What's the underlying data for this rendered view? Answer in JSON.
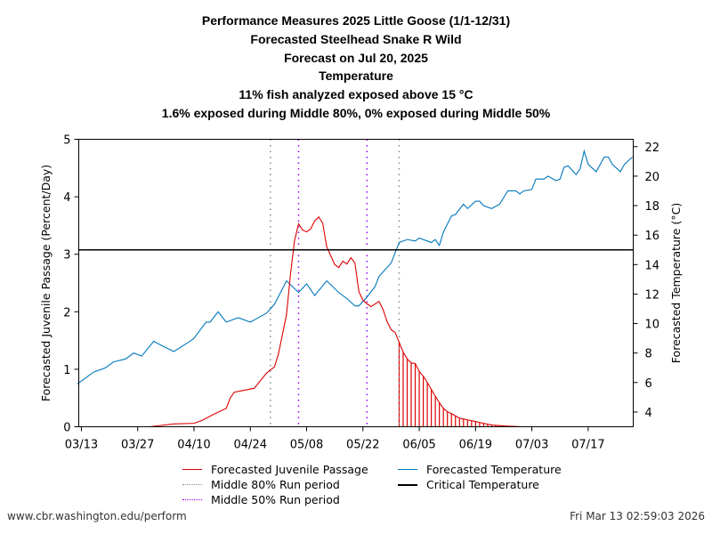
{
  "titles": [
    "Performance Measures 2025 Little Goose (1/1-12/31)",
    "Forecasted Steelhead Snake R Wild",
    "Forecast on Jul 20, 2025",
    "Temperature",
    "11% fish analyzed exposed above 15 °C",
    "1.6% exposed during Middle 80%, 0% exposed during Middle 50%"
  ],
  "footer": {
    "left": "www.cbr.washington.edu/perform",
    "right": "Fri Mar 13 02:59:03 2026"
  },
  "legend": {
    "passage": "Forecasted Juvenile Passage",
    "mid80": "Middle 80% Run period",
    "mid50": "Middle 50% Run period",
    "temperature": "Forecasted Temperature",
    "critical": "Critical Temperature"
  },
  "colors": {
    "passage": "#dd0000",
    "temperature": "#0077bb",
    "mid80": "#888888",
    "mid50": "#9900ee",
    "critical": "#000000"
  },
  "chart_data": {
    "type": "line",
    "year": 2025,
    "xlabel": "",
    "ylabel": "Forecasted Juvenile Passage (Percent/Day)",
    "y2label": "Forecasted Temperature (°C)",
    "xlim": [
      "03/12",
      "07/28"
    ],
    "ylim": [
      0,
      5
    ],
    "y2lim": [
      3,
      22.5
    ],
    "xticks": [
      "03/13",
      "03/27",
      "04/10",
      "04/24",
      "05/08",
      "05/22",
      "06/05",
      "06/19",
      "07/03",
      "07/17"
    ],
    "yticks": [
      0,
      1,
      2,
      3,
      4,
      5
    ],
    "y2ticks": [
      4,
      6,
      8,
      10,
      12,
      14,
      16,
      18,
      20,
      22
    ],
    "critical_temperature": 15,
    "middle_80": [
      "04/29",
      "05/31"
    ],
    "middle_50": [
      "05/06",
      "05/23"
    ],
    "exposed_period": [
      "05/31",
      "06/27"
    ],
    "series": [
      {
        "name": "Forecasted Juvenile Passage",
        "axis": "left",
        "x": [
          "03/30",
          "04/05",
          "04/10",
          "04/12",
          "04/15",
          "04/18",
          "04/19",
          "04/20",
          "04/25",
          "04/28",
          "04/29",
          "04/30",
          "05/01",
          "05/03",
          "05/04",
          "05/05",
          "05/06",
          "05/07",
          "05/08",
          "05/09",
          "05/10",
          "05/11",
          "05/12",
          "05/13",
          "05/15",
          "05/16",
          "05/17",
          "05/18",
          "05/19",
          "05/20",
          "05/21",
          "05/22",
          "05/23",
          "05/24",
          "05/26",
          "05/27",
          "05/28",
          "05/29",
          "05/30",
          "05/31",
          "06/01",
          "06/02",
          "06/03",
          "06/04",
          "06/05",
          "06/06",
          "06/07",
          "06/08",
          "06/09",
          "06/10",
          "06/11",
          "06/12",
          "06/13",
          "06/14",
          "06/15",
          "06/17",
          "06/19",
          "06/21",
          "06/23",
          "06/27",
          "07/01",
          "07/28"
        ],
        "values": [
          0.0,
          0.05,
          0.06,
          0.11,
          0.22,
          0.32,
          0.5,
          0.6,
          0.67,
          0.93,
          0.99,
          1.04,
          1.27,
          1.95,
          2.66,
          3.24,
          3.53,
          3.42,
          3.39,
          3.44,
          3.58,
          3.65,
          3.54,
          3.13,
          2.82,
          2.77,
          2.88,
          2.83,
          2.94,
          2.85,
          2.35,
          2.2,
          2.14,
          2.09,
          2.18,
          2.04,
          1.83,
          1.69,
          1.64,
          1.47,
          1.3,
          1.18,
          1.11,
          1.1,
          0.96,
          0.88,
          0.77,
          0.65,
          0.53,
          0.42,
          0.32,
          0.26,
          0.23,
          0.19,
          0.15,
          0.12,
          0.09,
          0.06,
          0.03,
          0.01,
          0.0,
          0.0
        ]
      },
      {
        "name": "Forecasted Temperature",
        "axis": "right",
        "x": [
          "03/12",
          "03/16",
          "03/19",
          "03/21",
          "03/24",
          "03/26",
          "03/28",
          "03/31",
          "04/02",
          "04/05",
          "04/09",
          "04/10",
          "04/13",
          "04/14",
          "04/16",
          "04/18",
          "04/21",
          "04/24",
          "04/26",
          "04/28",
          "04/30",
          "05/03",
          "05/06",
          "05/08",
          "05/10",
          "05/13",
          "05/16",
          "05/18",
          "05/20",
          "05/21",
          "05/23",
          "05/25",
          "05/26",
          "05/29",
          "05/30",
          "05/31",
          "06/02",
          "06/04",
          "06/05",
          "06/08",
          "06/09",
          "06/10",
          "06/11",
          "06/13",
          "06/14",
          "06/16",
          "06/17",
          "06/19",
          "06/20",
          "06/21",
          "06/23",
          "06/25",
          "06/27",
          "06/29",
          "06/30",
          "07/01",
          "07/03",
          "07/04",
          "07/06",
          "07/07",
          "07/09",
          "07/10",
          "07/11",
          "07/12",
          "07/13",
          "07/14",
          "07/15",
          "07/16",
          "07/17",
          "07/19",
          "07/21",
          "07/22",
          "07/23",
          "07/25",
          "07/26",
          "07/28"
        ],
        "values": [
          5.9,
          6.7,
          7.0,
          7.4,
          7.6,
          8.0,
          7.8,
          8.8,
          8.5,
          8.1,
          8.8,
          9.0,
          10.1,
          10.1,
          10.8,
          10.1,
          10.4,
          10.1,
          10.4,
          10.7,
          11.3,
          12.9,
          12.1,
          12.7,
          11.9,
          12.9,
          12.1,
          11.7,
          11.2,
          11.2,
          11.8,
          12.5,
          13.2,
          14.1,
          14.8,
          15.5,
          15.7,
          15.6,
          15.8,
          15.5,
          15.7,
          15.3,
          16.2,
          17.3,
          17.4,
          18.1,
          17.8,
          18.3,
          18.3,
          18.0,
          17.8,
          18.1,
          19.0,
          19.0,
          18.8,
          19.0,
          19.1,
          19.8,
          19.8,
          20.0,
          19.7,
          19.8,
          20.6,
          20.7,
          20.4,
          20.1,
          20.5,
          21.7,
          20.8,
          20.3,
          21.3,
          21.3,
          20.8,
          20.3,
          20.8,
          21.3
        ]
      }
    ]
  }
}
